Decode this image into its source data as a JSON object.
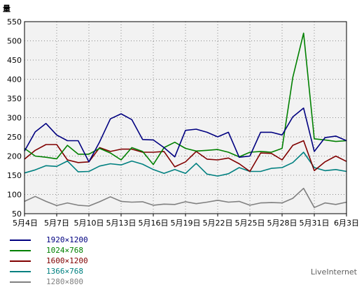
{
  "chart_data": {
    "type": "line",
    "ylabel": "量",
    "ylim": [
      50,
      550
    ],
    "yticks": [
      50,
      100,
      150,
      200,
      250,
      300,
      350,
      400,
      450,
      500,
      550
    ],
    "x": [
      "5月4日",
      "5月5日",
      "5月6日",
      "5月7日",
      "5月8日",
      "5月9日",
      "5月10日",
      "5月11日",
      "5月12日",
      "5月13日",
      "5月14日",
      "5月15日",
      "5月16日",
      "5月17日",
      "5月18日",
      "5月19日",
      "5月20日",
      "5月21日",
      "5月22日",
      "5月23日",
      "5月24日",
      "5月25日",
      "5月26日",
      "5月27日",
      "5月28日",
      "5月29日",
      "5月30日",
      "5月31日",
      "6月1日",
      "6月2日",
      "6月3日"
    ],
    "xticks": [
      "5月4日",
      "5月7日",
      "5月10日",
      "5月13日",
      "5月16日",
      "5月19日",
      "5月22日",
      "5月25日",
      "5月28日",
      "5月31日",
      "6月3日"
    ],
    "grid": true,
    "series": [
      {
        "name": "1920×1200",
        "color": "#000080",
        "values": [
          213,
          263,
          285,
          255,
          240,
          240,
          185,
          237,
          297,
          310,
          295,
          243,
          242,
          222,
          198,
          267,
          270,
          262,
          250,
          262,
          197,
          200,
          262,
          262,
          255,
          302,
          325,
          212,
          248,
          252,
          240
        ]
      },
      {
        "name": "1024×768",
        "color": "#008000",
        "values": [
          220,
          200,
          197,
          193,
          228,
          205,
          205,
          220,
          208,
          190,
          222,
          212,
          178,
          222,
          236,
          220,
          213,
          215,
          217,
          210,
          198,
          210,
          212,
          210,
          220,
          405,
          520,
          245,
          242,
          238,
          240
        ]
      },
      {
        "name": "1600×1200",
        "color": "#800000",
        "values": [
          192,
          215,
          230,
          230,
          190,
          183,
          185,
          222,
          212,
          218,
          218,
          210,
          210,
          212,
          172,
          185,
          212,
          192,
          190,
          195,
          180,
          160,
          208,
          207,
          190,
          228,
          240,
          162,
          185,
          200,
          186
        ]
      },
      {
        "name": "1366×768",
        "color": "#008080",
        "values": [
          156,
          164,
          175,
          173,
          187,
          159,
          160,
          174,
          180,
          177,
          187,
          179,
          165,
          155,
          165,
          155,
          181,
          153,
          148,
          154,
          170,
          160,
          160,
          168,
          170,
          183,
          210,
          170,
          162,
          165,
          160
        ]
      },
      {
        "name": "1280×800",
        "color": "#808080",
        "values": [
          82,
          95,
          82,
          71,
          78,
          72,
          70,
          81,
          94,
          82,
          80,
          81,
          72,
          75,
          74,
          81,
          76,
          80,
          85,
          80,
          82,
          72,
          78,
          79,
          78,
          90,
          116,
          66,
          78,
          74,
          80
        ]
      }
    ]
  },
  "credit": "LiveInternet"
}
